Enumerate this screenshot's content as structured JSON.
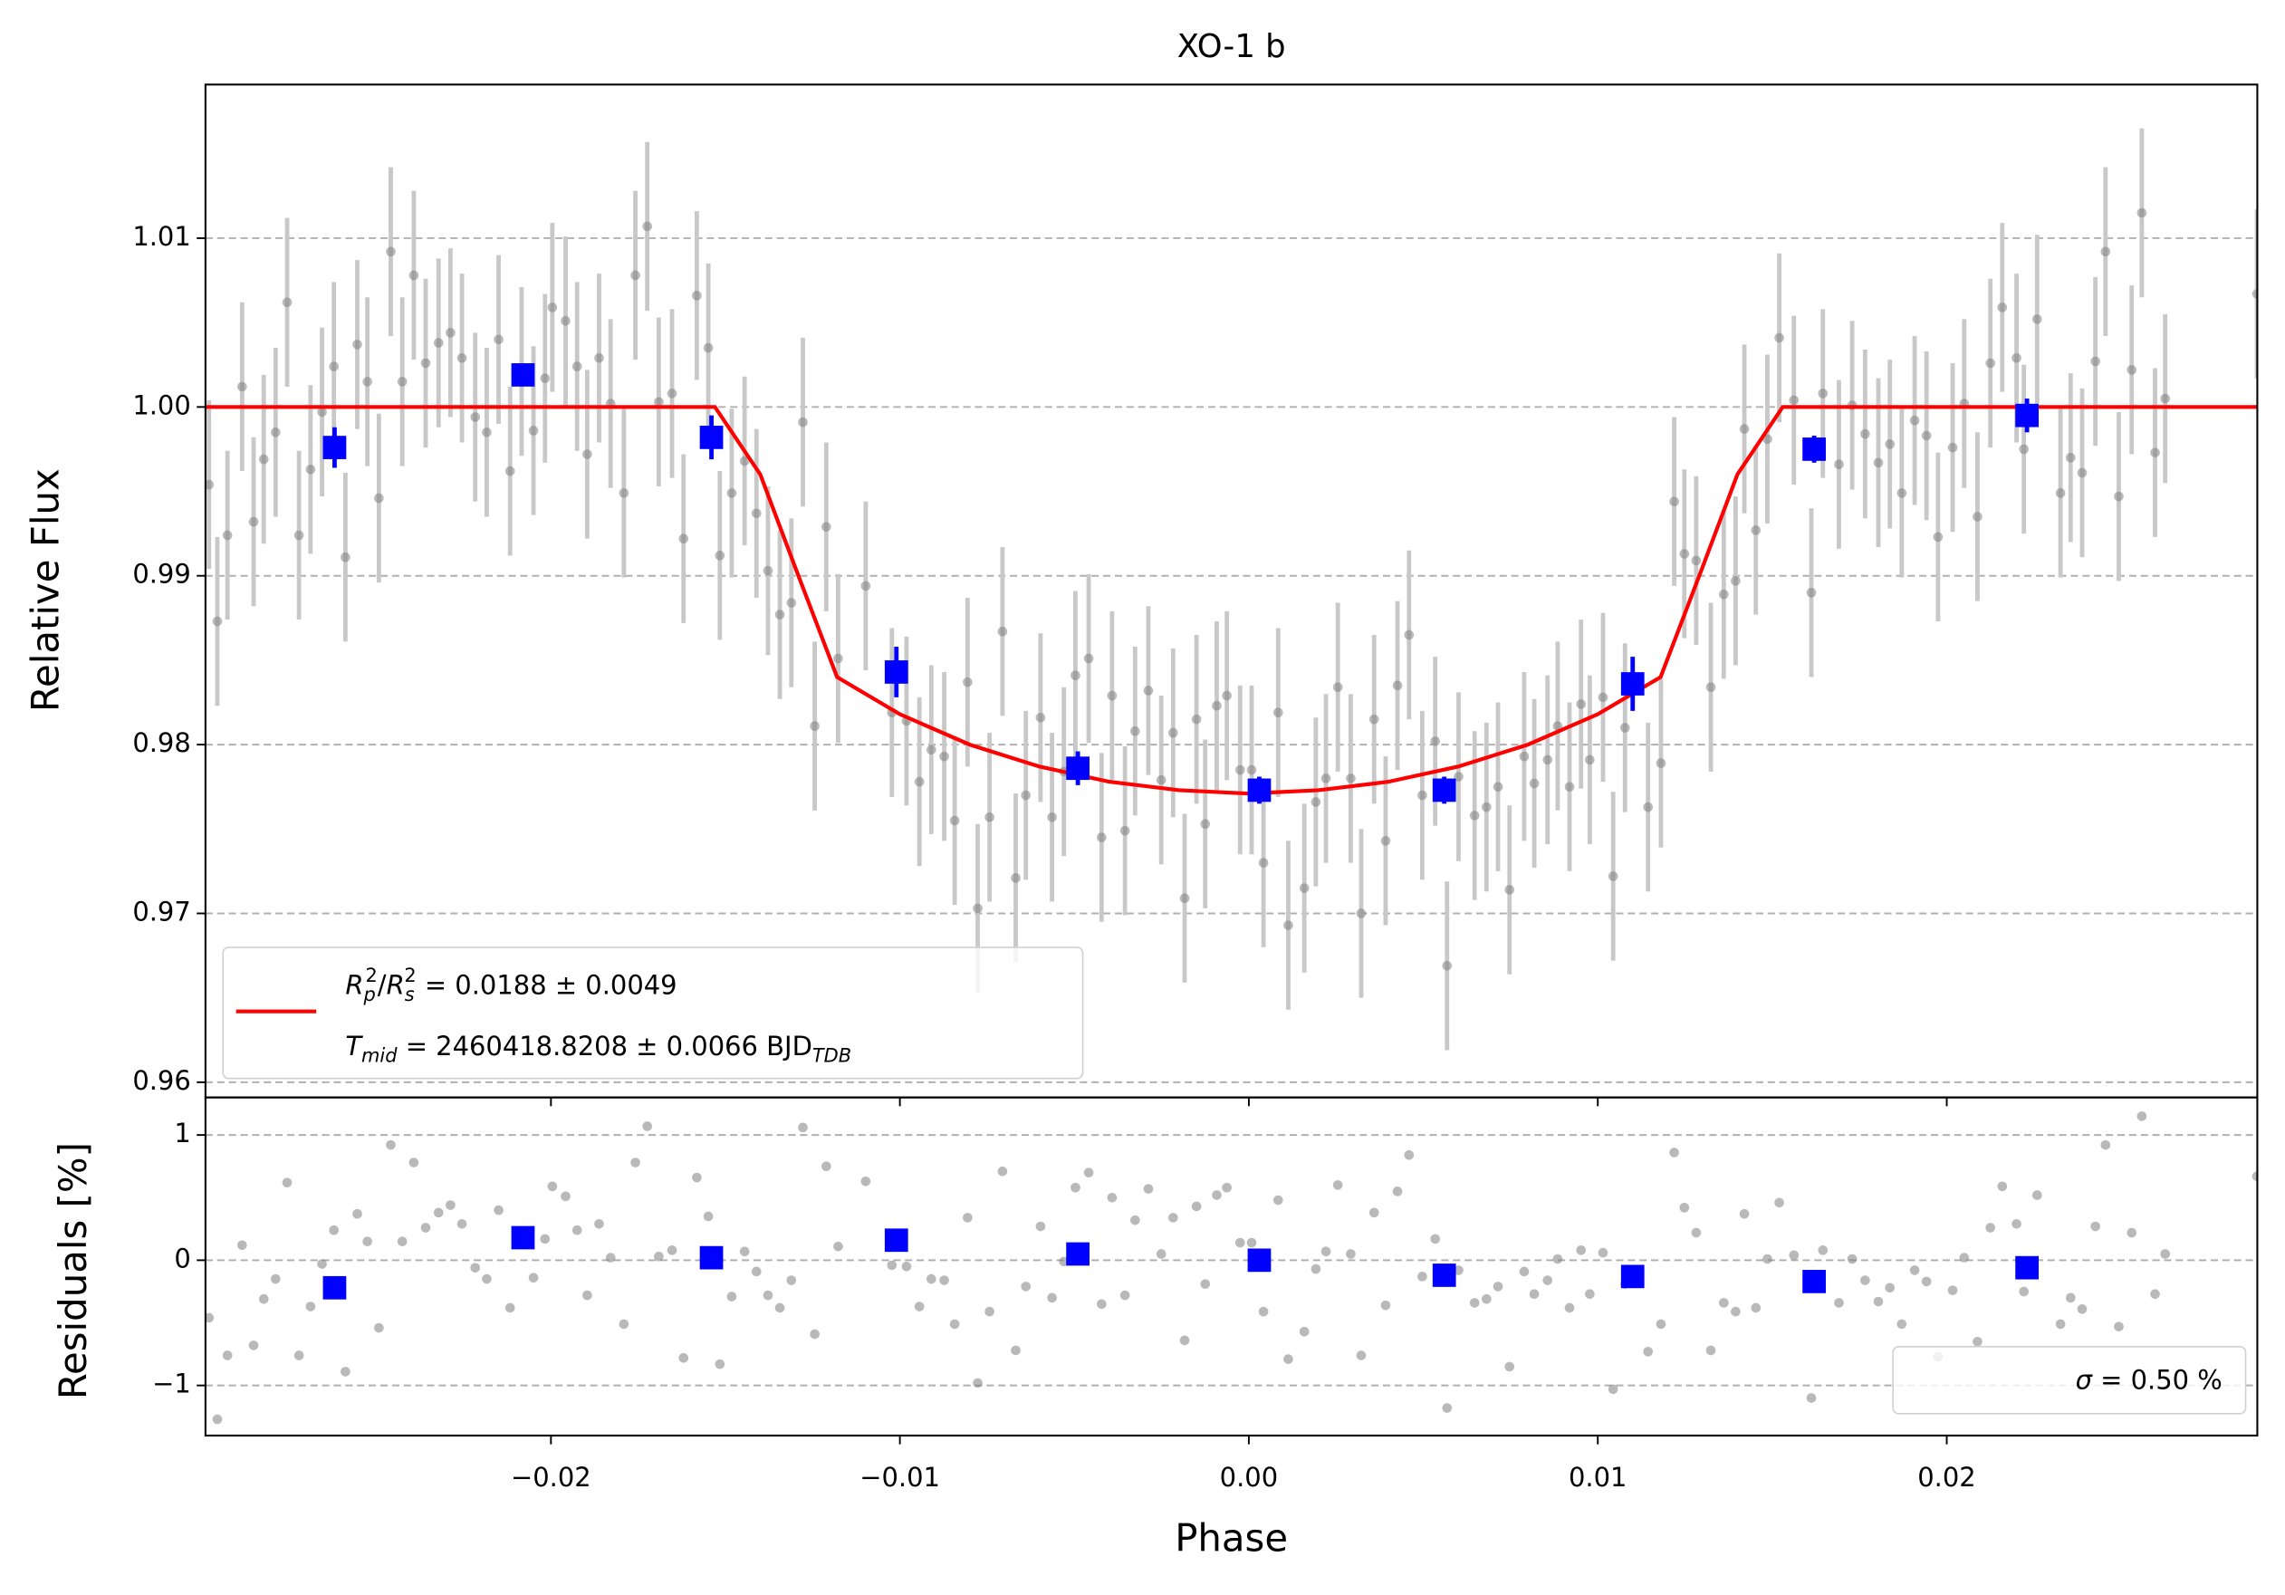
{
  "chart_data": [
    {
      "type": "scatter",
      "title": "XO-1 b",
      "ylabel": "Relative Flux",
      "xlim": [
        -0.0299,
        0.0289
      ],
      "ylim": [
        0.9591,
        1.0191
      ],
      "yticks": [
        1.01,
        {
          "value": 1.0,
          "label": "1.00"
        },
        0.99,
        0.98,
        0.97,
        0.96
      ],
      "grid": true,
      "legend_loc": "lower left",
      "data": {
        "color": "#808080",
        "yerr": 0.005,
        "x": [
          -0.0298,
          -0.02956,
          -0.02927,
          -0.02885,
          -0.02852,
          -0.02823,
          -0.02789,
          -0.02756,
          -0.02722,
          -0.02689,
          -0.02656,
          -0.02622,
          -0.02589,
          -0.02555,
          -0.02526,
          -0.02493,
          -0.02459,
          -0.02426,
          -0.02393,
          -0.02359,
          -0.02322,
          -0.02288,
          -0.02255,
          -0.02217,
          -0.02184,
          -0.0215,
          -0.02117,
          -0.02084,
          -0.0205,
          -0.02017,
          -0.01996,
          -0.01958,
          -0.01925,
          -0.01896,
          -0.01862,
          -0.01829,
          -0.01791,
          -0.01758,
          -0.01724,
          -0.01691,
          -0.01653,
          -0.0162,
          -0.01582,
          -0.01549,
          -0.01516,
          -0.01482,
          -0.01445,
          -0.01411,
          -0.01378,
          -0.01344,
          -0.01311,
          -0.01278,
          -0.01244,
          -0.01211,
          -0.01177,
          -0.01098,
          -0.01023,
          -0.00981,
          -0.00944,
          -0.0091,
          -0.00873,
          -0.00843,
          -0.00806,
          -0.00777,
          -0.00743,
          -0.00706,
          -0.00668,
          -0.00639,
          -0.00597,
          -0.00564,
          -0.0053,
          -0.00497,
          -0.00459,
          -0.00422,
          -0.00392,
          -0.00355,
          -0.00326,
          -0.00288,
          -0.00251,
          -0.00217,
          -0.00184,
          -0.0015,
          -0.00125,
          -0.00092,
          -0.00063,
          -0.00025,
          8e-05,
          0.00042,
          0.00084,
          0.00113,
          0.00159,
          0.00192,
          0.00221,
          0.00255,
          0.00292,
          0.00322,
          0.00359,
          0.00392,
          0.00426,
          0.00459,
          0.00497,
          0.00534,
          0.00568,
          0.00601,
          0.00647,
          0.00681,
          0.00714,
          0.00747,
          0.00789,
          0.00818,
          0.00856,
          0.00885,
          0.00919,
          0.00952,
          0.00977,
          0.01015,
          0.01044,
          0.01078,
          0.01144,
          0.01181,
          0.01219,
          0.01248,
          0.01282,
          0.01324,
          0.01361,
          0.01395,
          0.0142,
          0.01453,
          0.01486,
          0.0152,
          0.01562,
          0.01612,
          0.01645,
          0.01691,
          0.01729,
          0.01766,
          0.01804,
          0.01837,
          0.01871,
          0.01908,
          0.01942,
          0.01975,
          0.02017,
          0.0205,
          0.02088,
          0.02125,
          0.02159,
          0.022,
          0.02221,
          0.02259,
          0.02326,
          0.02355,
          0.02388,
          0.02426,
          0.02455,
          0.02493,
          0.0253,
          0.02559,
          0.02597,
          0.02626,
          0.02889
        ],
        "values": [
          0.9954,
          0.9873,
          0.9924,
          1.0012,
          0.9932,
          0.9969,
          0.9985,
          1.0062,
          0.9924,
          0.9963,
          0.9997,
          1.0024,
          0.9911,
          1.0037,
          1.0015,
          0.9946,
          1.0092,
          1.0015,
          1.0078,
          1.0026,
          1.0038,
          1.0044,
          1.0029,
          0.9994,
          0.9985,
          1.004,
          0.9962,
          1.0021,
          0.9986,
          1.0017,
          1.0059,
          1.0051,
          1.0024,
          0.9972,
          1.0029,
          1.0002,
          0.9949,
          1.0078,
          1.0107,
          1.0003,
          1.0008,
          0.9922,
          1.0066,
          1.0035,
          0.9912,
          0.9949,
          0.9968,
          0.9937,
          0.9903,
          0.9877,
          0.9884,
          0.9991,
          0.9811,
          0.9929,
          0.9851,
          0.9894,
          0.9819,
          0.9814,
          0.9778,
          0.9797,
          0.9793,
          0.9755,
          0.9837,
          0.9703,
          0.9757,
          0.9867,
          0.9721,
          0.977,
          0.9816,
          0.9757,
          0.9784,
          0.9841,
          0.9851,
          0.9745,
          0.9829,
          0.9749,
          0.9808,
          0.9832,
          0.9779,
          0.9807,
          0.9709,
          0.9815,
          0.9753,
          0.9823,
          0.9829,
          0.9785,
          0.9785,
          0.973,
          0.9819,
          0.9693,
          0.9715,
          0.9766,
          0.978,
          0.9834,
          0.978,
          0.97,
          0.9815,
          0.9743,
          0.9835,
          0.9865,
          0.977,
          0.9802,
          0.9669,
          0.9781,
          0.9758,
          0.9763,
          0.9775,
          0.9714,
          0.9793,
          0.9777,
          0.9791,
          0.9811,
          0.9775,
          0.9824,
          0.9791,
          0.9828,
          0.9722,
          0.981,
          0.9763,
          0.9789,
          0.9944,
          0.9913,
          0.9909,
          0.9834,
          0.9889,
          0.9897,
          0.9987,
          0.9927,
          0.9981,
          1.0041,
          1.0004,
          0.989,
          1.0008,
          0.9966,
          1.0001,
          0.9984,
          0.9967,
          0.9978,
          0.9949,
          0.9992,
          0.9983,
          0.9923,
          0.9976,
          1.0002,
          0.9935,
          1.0026,
          1.0059,
          1.0029,
          0.9975,
          1.0052,
          0.9949,
          0.997,
          0.9961,
          1.0027,
          1.0092,
          0.9947,
          1.0022,
          1.0115,
          0.9973,
          1.0005,
          1.0067
        ]
      },
      "binned": {
        "color": "#0000ff",
        "x": [
          -0.0262,
          -0.0208,
          -0.0154,
          -0.0101,
          -0.0049,
          0.0003,
          0.0056,
          0.011,
          0.0162,
          0.0223
        ],
        "values": [
          0.9976,
          1.0019,
          0.9982,
          0.9843,
          0.9786,
          0.9773,
          0.9773,
          0.9836,
          0.9975,
          0.9995
        ],
        "errors": [
          0.0012,
          0.0005,
          0.0013,
          0.0015,
          0.001,
          0.0008,
          0.0008,
          0.0016,
          0.0008,
          0.001
        ]
      },
      "model": {
        "color": "#ff0000",
        "x": [
          -0.0299,
          -0.0153,
          -0.014,
          -0.013,
          -0.0118,
          -0.01,
          -0.008,
          -0.006,
          -0.004,
          -0.002,
          0,
          0.002,
          0.004,
          0.006,
          0.008,
          0.01,
          0.0118,
          0.013,
          0.014,
          0.0153,
          0.0289
        ],
        "values": [
          1,
          1,
          0.996,
          0.9905,
          0.984,
          0.9818,
          0.98,
          0.9787,
          0.9778,
          0.9773,
          0.9771,
          0.9773,
          0.9778,
          0.9787,
          0.98,
          0.9818,
          0.984,
          0.9905,
          0.996,
          1,
          1
        ],
        "label_lines": [
          [
            [
              "R",
              "it"
            ],
            [
              "p",
              "sub"
            ],
            [
              "2",
              "sup"
            ],
            [
              "/",
              "rm"
            ],
            [
              "R",
              "it"
            ],
            [
              "s",
              "sub"
            ],
            [
              "2",
              "sup"
            ],
            [
              " = 0.0188 ± 0.0049",
              "rm"
            ]
          ],
          [
            [
              "T",
              "it"
            ],
            [
              "mid",
              "sub"
            ],
            [
              " = 2460418.8208 ± 0.0066 BJD",
              "rm"
            ],
            [
              "TDB",
              "sub"
            ]
          ]
        ]
      }
    },
    {
      "type": "scatter",
      "xlabel": "Phase",
      "ylabel": "Residuals [%]",
      "xlim": [
        -0.0299,
        0.0289
      ],
      "ylim": [
        -1.4,
        1.3
      ],
      "xticks": [
        {
          "value": -0.02,
          "label": "−0.02"
        },
        {
          "value": -0.01,
          "label": "−0.01"
        },
        {
          "value": 0,
          "label": "0.00"
        },
        0.01,
        0.02
      ],
      "yticks": [
        1,
        0,
        {
          "value": -1,
          "label": "−1"
        }
      ],
      "grid": true,
      "legend_loc": "lower right",
      "legend_label": [
        [
          "σ",
          "it"
        ],
        [
          " = 0.50 %",
          "rm"
        ]
      ],
      "data": {
        "color": "#808080",
        "values": [
          -0.46,
          -1.27,
          -0.76,
          0.12,
          -0.68,
          -0.31,
          -0.15,
          0.62,
          -0.76,
          -0.37,
          -0.03,
          0.24,
          -0.89,
          0.37,
          0.15,
          -0.54,
          0.92,
          0.15,
          0.78,
          0.26,
          0.38,
          0.44,
          0.29,
          -0.06,
          -0.15,
          0.4,
          -0.38,
          0.21,
          -0.14,
          0.17,
          0.59,
          0.51,
          0.24,
          -0.28,
          0.29,
          0.02,
          -0.51,
          0.78,
          1.07,
          0.03,
          0.08,
          -0.78,
          0.66,
          0.35,
          -0.83,
          -0.29,
          0.07,
          -0.09,
          -0.28,
          -0.38,
          -0.16,
          1.06,
          -0.59,
          0.75,
          0.11,
          0.63,
          -0.04,
          -0.05,
          -0.37,
          -0.15,
          -0.16,
          -0.51,
          0.34,
          -0.98,
          -0.41,
          0.71,
          -0.72,
          -0.21,
          0.27,
          -0.3,
          -0.01,
          0.58,
          0.7,
          -0.35,
          0.5,
          -0.28,
          0.32,
          0.57,
          0.05,
          0.34,
          -0.64,
          0.43,
          -0.19,
          0.52,
          0.58,
          0.14,
          0.14,
          -0.41,
          0.48,
          -0.79,
          -0.57,
          -0.07,
          0.07,
          0.6,
          0.05,
          -0.76,
          0.38,
          -0.36,
          0.55,
          0.84,
          -0.13,
          0.17,
          -1.18,
          -0.08,
          -0.34,
          -0.31,
          -0.21,
          -0.85,
          -0.09,
          -0.27,
          -0.16,
          0.01,
          -0.38,
          0.08,
          -0.27,
          0.06,
          -1.03,
          -0.19,
          -0.73,
          -0.51,
          0.86,
          0.42,
          0.22,
          -0.72,
          -0.34,
          -0.41,
          0.37,
          -0.38,
          0.01,
          0.46,
          0.04,
          -1.1,
          0.08,
          -0.34,
          0.01,
          -0.16,
          -0.33,
          -0.22,
          -0.51,
          -0.08,
          -0.17,
          -0.77,
          -0.24,
          0.02,
          -0.65,
          0.26,
          0.59,
          0.29,
          -0.25,
          0.52,
          -0.51,
          -0.3,
          -0.39,
          0.27,
          0.92,
          -0.53,
          0.22,
          1.15,
          -0.27,
          0.05,
          0.67
        ]
      },
      "binned": {
        "color": "#0000ff",
        "values": [
          -0.22,
          0.18,
          0.02,
          0.16,
          0.05,
          0.0,
          -0.12,
          -0.13,
          -0.17,
          -0.06
        ]
      }
    }
  ]
}
